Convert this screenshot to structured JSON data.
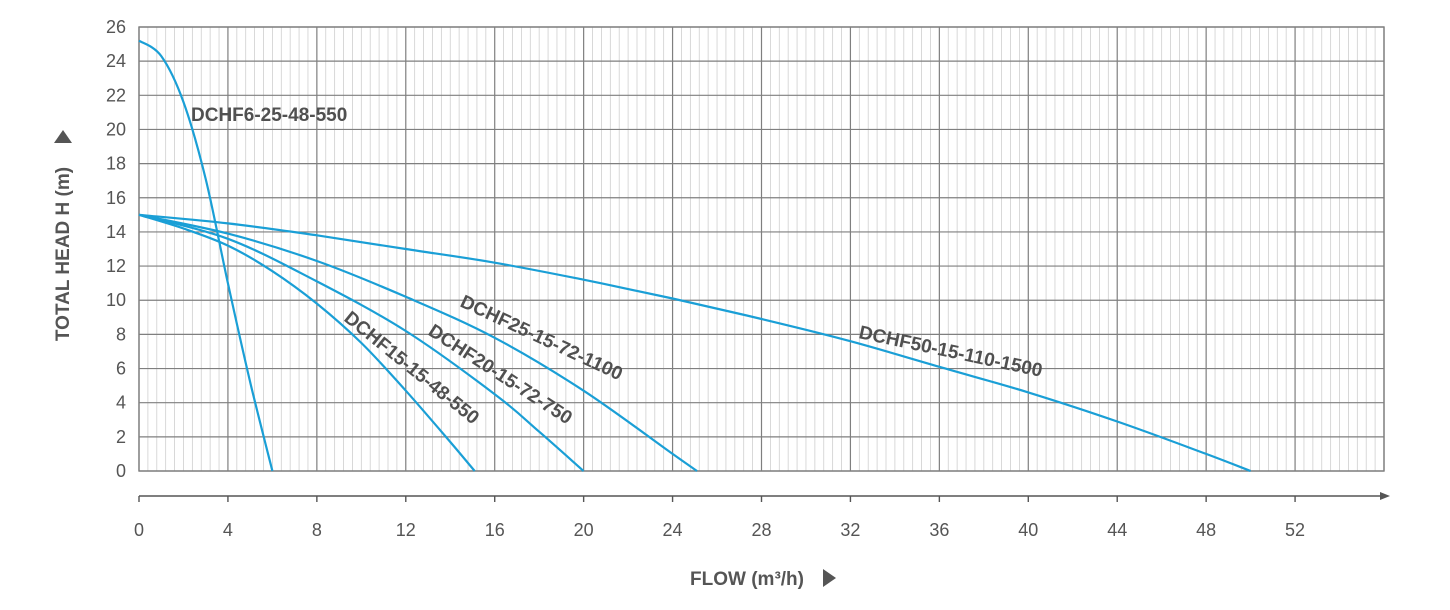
{
  "chart_data": {
    "type": "line",
    "title": "",
    "xlabel": "FLOW (m³/h)",
    "ylabel": "TOTAL HEAD H (m)",
    "xlim": [
      0,
      56
    ],
    "ylim": [
      0,
      26
    ],
    "x_ticks": [
      0,
      4,
      8,
      12,
      16,
      20,
      24,
      28,
      32,
      36,
      40,
      44,
      48,
      52
    ],
    "y_ticks": [
      0,
      2,
      4,
      6,
      8,
      10,
      12,
      14,
      16,
      18,
      20,
      22,
      24,
      26
    ],
    "grid": true,
    "line_color": "#1a9fd6",
    "grid_color": "#cfcfcf",
    "grid_major_color": "#7f7f7f",
    "series": [
      {
        "name": "DCHF6-25-48-550",
        "x": [
          0,
          1,
          2,
          3,
          4,
          5,
          6
        ],
        "y": [
          25.2,
          24.3,
          21.6,
          17.1,
          11.0,
          5.2,
          0
        ]
      },
      {
        "name": "DCHF15-15-48-550",
        "x": [
          0,
          2,
          4,
          6,
          8,
          10,
          12,
          14,
          15.1
        ],
        "y": [
          15.0,
          14.2,
          13.2,
          11.7,
          9.8,
          7.5,
          4.7,
          1.7,
          0
        ]
      },
      {
        "name": "DCHF20-15-72-750",
        "x": [
          0,
          4,
          8,
          12,
          16,
          18,
          20
        ],
        "y": [
          15.0,
          13.6,
          11.1,
          8.2,
          4.5,
          2.3,
          0
        ]
      },
      {
        "name": "DCHF25-15-72-1100",
        "x": [
          0,
          4,
          8,
          12,
          16,
          20,
          24,
          25.1
        ],
        "y": [
          15.0,
          13.9,
          12.3,
          10.2,
          7.8,
          4.7,
          1.0,
          0
        ]
      },
      {
        "name": "DCHF50-15-110-1500",
        "x": [
          0,
          4,
          8,
          12,
          16,
          20,
          24,
          28,
          32,
          36,
          40,
          44,
          48,
          50
        ],
        "y": [
          15.0,
          14.5,
          13.8,
          13.0,
          12.2,
          11.2,
          10.1,
          8.9,
          7.6,
          6.1,
          4.6,
          2.9,
          1.0,
          0
        ]
      }
    ]
  }
}
